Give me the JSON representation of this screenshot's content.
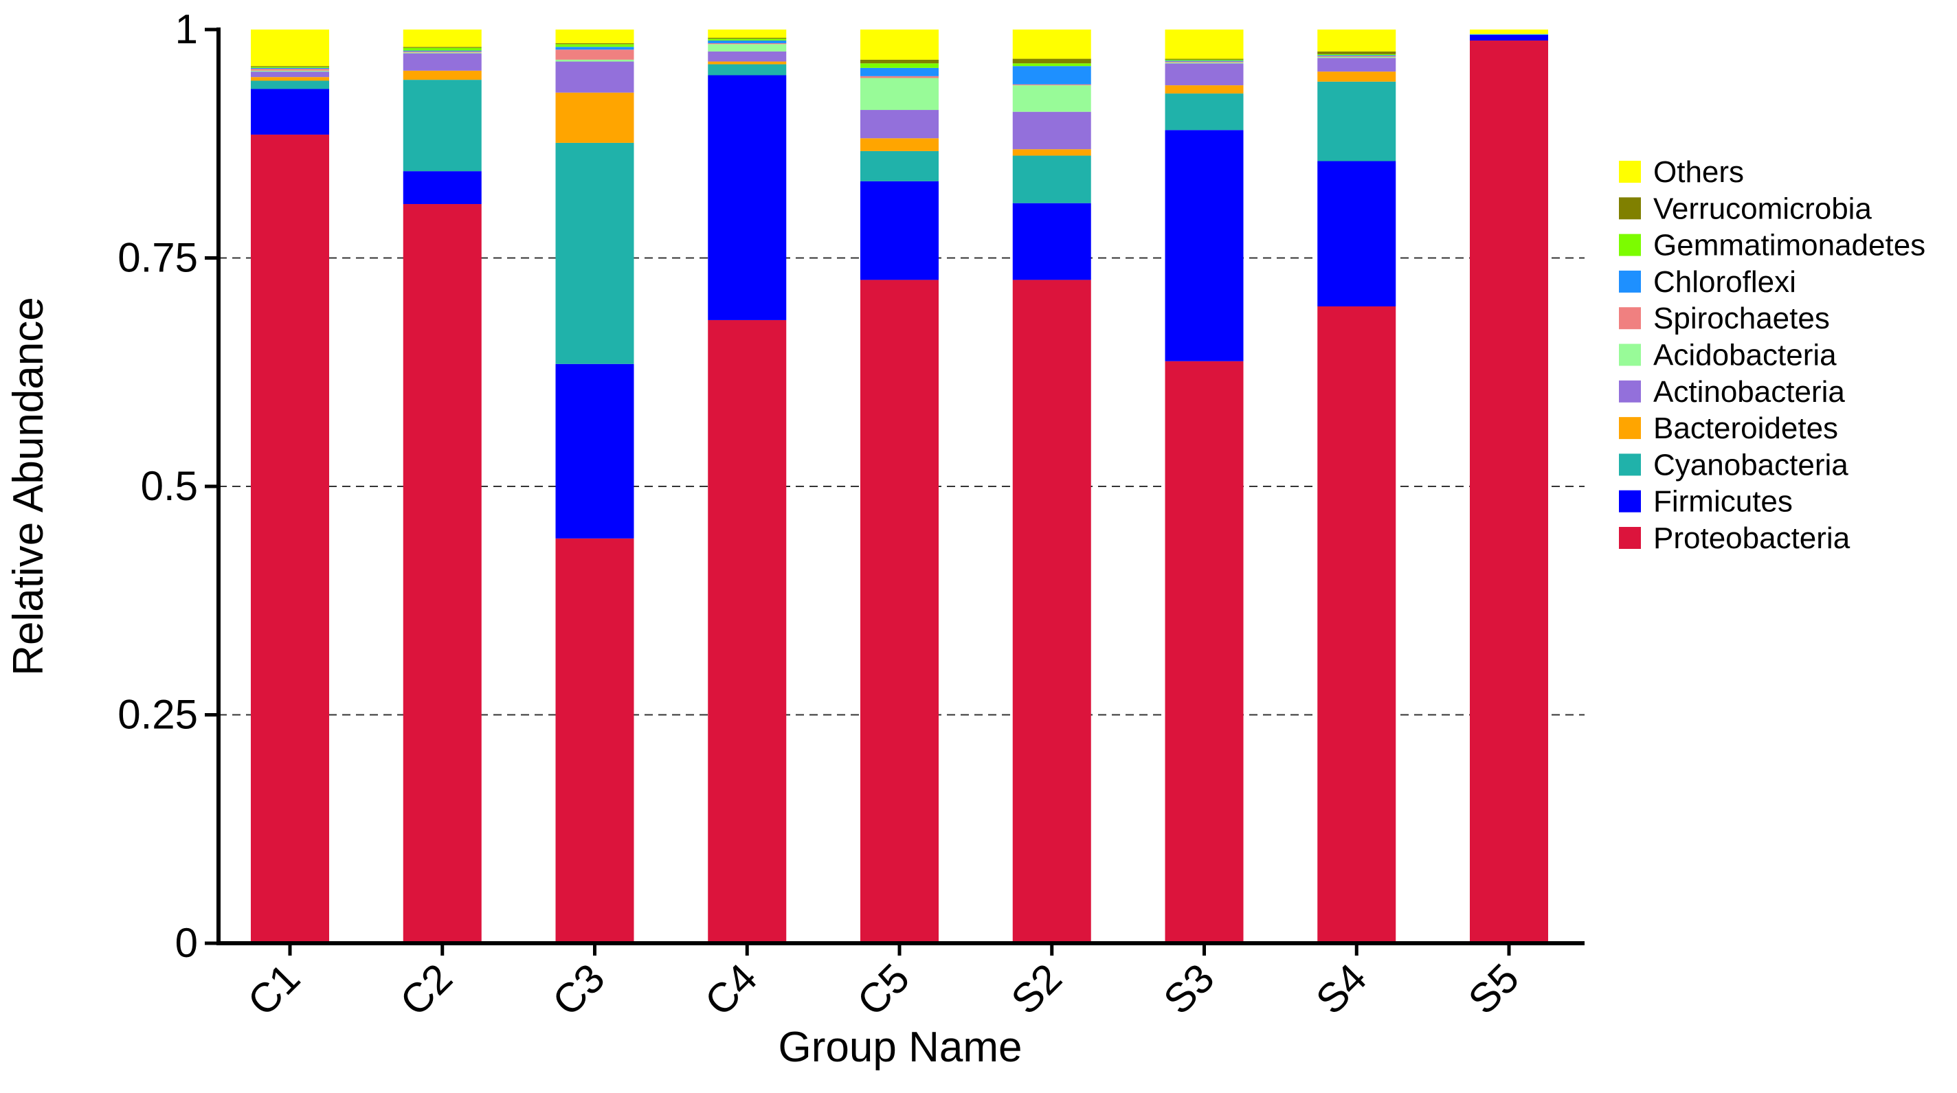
{
  "chart_data": {
    "type": "bar",
    "stacked": true,
    "xlabel": "Group Name",
    "ylabel": "Relative Abundance",
    "ylim": [
      0,
      1
    ],
    "yticks": [
      "0",
      "0.25",
      "0.5",
      "0.75",
      "1"
    ],
    "grid": true,
    "legend_position": "right",
    "categories": [
      "C1",
      "C2",
      "C3",
      "C4",
      "C5",
      "S2",
      "S3",
      "S4",
      "S5"
    ],
    "series": [
      {
        "name": "Proteobacteria",
        "color": "#DC143C",
        "values": [
          0.885,
          0.809,
          0.443,
          0.682,
          0.726,
          0.726,
          0.637,
          0.697,
          0.988
        ]
      },
      {
        "name": "Firmicutes",
        "color": "#0000FF",
        "values": [
          0.05,
          0.036,
          0.191,
          0.268,
          0.108,
          0.084,
          0.253,
          0.159,
          0.006
        ]
      },
      {
        "name": "Cyanobacteria",
        "color": "#20B2AA",
        "values": [
          0.009,
          0.1,
          0.242,
          0.012,
          0.033,
          0.052,
          0.04,
          0.087,
          0.0
        ]
      },
      {
        "name": "Bacteroidetes",
        "color": "#FFA500",
        "values": [
          0.004,
          0.01,
          0.055,
          0.003,
          0.014,
          0.007,
          0.009,
          0.011,
          0.0
        ]
      },
      {
        "name": "Actinobacteria",
        "color": "#9370DB",
        "values": [
          0.006,
          0.019,
          0.034,
          0.011,
          0.031,
          0.041,
          0.024,
          0.015,
          0.0
        ]
      },
      {
        "name": "Acidobacteria",
        "color": "#98FB98",
        "values": [
          0.001,
          0.001,
          0.002,
          0.008,
          0.035,
          0.029,
          0.001,
          0.001,
          0.0
        ]
      },
      {
        "name": "Spirochaetes",
        "color": "#F08080",
        "values": [
          0.002,
          0.001,
          0.011,
          0.001,
          0.002,
          0.001,
          0.001,
          0.001,
          0.0
        ]
      },
      {
        "name": "Chloroflexi",
        "color": "#1E90FF",
        "values": [
          0.001,
          0.001,
          0.003,
          0.003,
          0.009,
          0.02,
          0.001,
          0.001,
          0.001
        ]
      },
      {
        "name": "Gemmatimonadetes",
        "color": "#7CFC00",
        "values": [
          0.001,
          0.003,
          0.003,
          0.002,
          0.005,
          0.003,
          0.001,
          0.001,
          0.0
        ]
      },
      {
        "name": "Verrucomicrobia",
        "color": "#808000",
        "values": [
          0.001,
          0.001,
          0.001,
          0.001,
          0.004,
          0.005,
          0.001,
          0.003,
          0.0
        ]
      },
      {
        "name": "Others",
        "color": "#FFFF00",
        "values": [
          0.04,
          0.019,
          0.015,
          0.009,
          0.033,
          0.032,
          0.032,
          0.024,
          0.005
        ]
      }
    ]
  }
}
